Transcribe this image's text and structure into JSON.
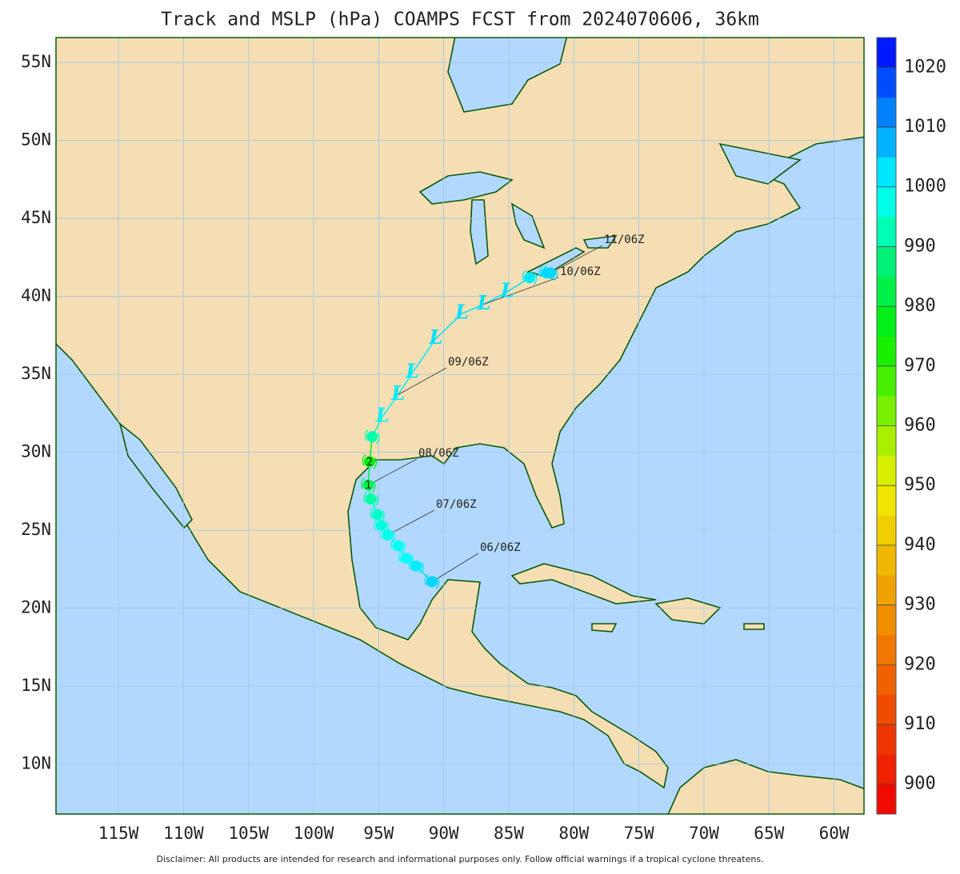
{
  "map": {
    "title": "Track and MSLP (hPa) COAMPS FCST from 2024070606, 36km",
    "disclaimer": "Disclaimer: All products are intended for research and informational purposes only.  Follow official warnings if a tropical cyclone threatens.",
    "lonlim": [
      -119.8,
      -57.7
    ],
    "latlim": [
      6.8,
      56.6
    ],
    "lonticks": [
      {
        "value": -115,
        "label": "115W"
      },
      {
        "value": -110,
        "label": "110W"
      },
      {
        "value": -105,
        "label": "105W"
      },
      {
        "value": -100,
        "label": "100W"
      },
      {
        "value": -95,
        "label": "95W"
      },
      {
        "value": -90,
        "label": "90W"
      },
      {
        "value": -85,
        "label": "85W"
      },
      {
        "value": -80,
        "label": "80W"
      },
      {
        "value": -75,
        "label": "75W"
      },
      {
        "value": -70,
        "label": "70W"
      },
      {
        "value": -65,
        "label": "65W"
      },
      {
        "value": -60,
        "label": "60W"
      }
    ],
    "latticks": [
      {
        "value": 55,
        "label": "55N"
      },
      {
        "value": 50,
        "label": "50N"
      },
      {
        "value": 45,
        "label": "45N"
      },
      {
        "value": 40,
        "label": "40N"
      },
      {
        "value": 35,
        "label": "35N"
      },
      {
        "value": 30,
        "label": "30N"
      },
      {
        "value": 25,
        "label": "25N"
      },
      {
        "value": 20,
        "label": "20N"
      },
      {
        "value": 15,
        "label": "15N"
      },
      {
        "value": 10,
        "label": "10N"
      }
    ],
    "grid": true,
    "colorbar": {
      "lim": [
        895,
        1025
      ],
      "ticks": [
        900,
        910,
        920,
        930,
        940,
        950,
        960,
        970,
        980,
        990,
        1000,
        1010,
        1020
      ]
    },
    "track": {
      "lon": [
        -90.9,
        -92.1,
        -92.9,
        -93.5,
        -94.3,
        -94.8,
        -95.1,
        -95.6,
        -95.8,
        -95.7,
        -95.5,
        -94.7,
        -93.5,
        -92.4,
        -90.6,
        -88.6,
        -86.9,
        -85.1,
        -83.4,
        -82.1,
        -81.8
      ],
      "lat": [
        21.7,
        22.7,
        23.2,
        24.0,
        24.7,
        25.3,
        26.0,
        27.0,
        27.9,
        29.4,
        31.0,
        32.3,
        33.7,
        35.1,
        37.3,
        38.9,
        39.5,
        40.3,
        41.2,
        41.5,
        41.5
      ],
      "pressure": [
        1004,
        1002,
        1000,
        999,
        998,
        997,
        995,
        991,
        983,
        976,
        992,
        1001,
        1002,
        1002,
        1003,
        1003,
        1003,
        1003,
        1002,
        1003,
        1004
      ],
      "symbols": [
        null,
        null,
        null,
        null,
        null,
        null,
        null,
        null,
        "1",
        "2",
        null,
        "L",
        "L",
        "L",
        "L",
        "L",
        "L",
        "L",
        null,
        null,
        null
      ],
      "time_labels": [
        "06/06Z",
        null,
        null,
        null,
        "07/06Z",
        null,
        null,
        null,
        "08/06Z",
        null,
        null,
        null,
        "09/06Z",
        null,
        null,
        null,
        "10/06Z",
        null,
        null,
        null,
        "11/06Z"
      ]
    }
  }
}
